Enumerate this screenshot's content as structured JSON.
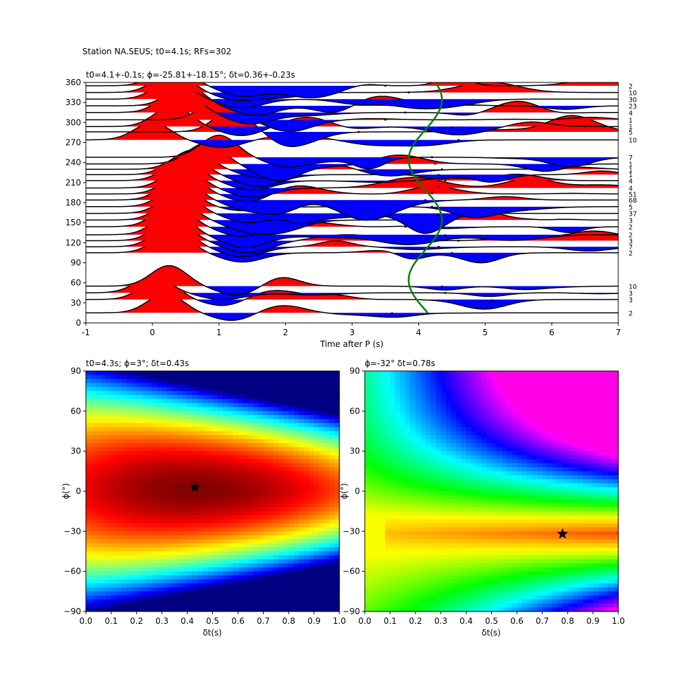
{
  "suptitle": "Station NA.SEUS; t0=4.1s; RFs=302",
  "chart_data": [
    {
      "type": "wiggle",
      "title": "t0=4.1+-0.1s; ϕ=-25.81+-18.15°; δt=0.36+-0.23s",
      "xlabel": "Time after P (s)",
      "ylabel": "",
      "xlim": [
        -1,
        7
      ],
      "ylim": [
        0,
        360
      ],
      "xticks": [
        -1,
        0,
        1,
        2,
        3,
        4,
        5,
        6,
        7
      ],
      "yticks": [
        0,
        30,
        60,
        90,
        120,
        150,
        180,
        210,
        240,
        270,
        300,
        330,
        360
      ],
      "traces": [
        {
          "baz": 15,
          "count": "2",
          "peak_time": 0.2,
          "peak_amp": 28,
          "p_time": 3.6
        },
        {
          "baz": 35,
          "count": "3",
          "peak_time": 0.1,
          "peak_amp": 30,
          "p_time": 5.1
        },
        {
          "baz": 45,
          "count": "3",
          "peak_time": 0.0,
          "peak_amp": 22,
          "p_time": 4.4
        },
        {
          "baz": 55,
          "count": "10",
          "peak_time": 0.25,
          "peak_amp": 30,
          "p_time": 4.35
        },
        {
          "baz": 105,
          "count": "2",
          "peak_time": 0.3,
          "peak_amp": 30,
          "p_time": 4.5
        },
        {
          "baz": 114,
          "count": "7",
          "peak_time": 0.3,
          "peak_amp": 32,
          "p_time": 4.3
        },
        {
          "baz": 123,
          "count": "3",
          "peak_time": 0.3,
          "peak_amp": 30,
          "p_time": 4.6
        },
        {
          "baz": 132,
          "count": "2",
          "peak_time": 0.3,
          "peak_amp": 32,
          "p_time": 4.4
        },
        {
          "baz": 144,
          "count": "2",
          "peak_time": 0.3,
          "peak_amp": 32,
          "p_time": 3.8
        },
        {
          "baz": 154,
          "count": "3",
          "peak_time": 0.35,
          "peak_amp": 30,
          "p_time": 4.25
        },
        {
          "baz": 164,
          "count": "37",
          "peak_time": 0.4,
          "peak_amp": 30,
          "p_time": 4.3
        },
        {
          "baz": 174,
          "count": "5",
          "peak_time": 0.4,
          "peak_amp": 30,
          "p_time": 4.2
        },
        {
          "baz": 184,
          "count": "68",
          "peak_time": 0.4,
          "peak_amp": 32,
          "p_time": 4.1
        },
        {
          "baz": 193,
          "count": "51",
          "peak_time": 0.45,
          "peak_amp": 30,
          "p_time": 4.2
        },
        {
          "baz": 202,
          "count": "4",
          "peak_time": 0.45,
          "peak_amp": 30,
          "p_time": 4.3
        },
        {
          "baz": 213,
          "count": "4",
          "peak_time": 0.45,
          "peak_amp": 30,
          "p_time": 4.4
        },
        {
          "baz": 222,
          "count": "1",
          "peak_time": 0.5,
          "peak_amp": 30,
          "p_time": 4.3
        },
        {
          "baz": 230,
          "count": "1",
          "peak_time": 0.6,
          "peak_amp": 28,
          "p_time": 4.35
        },
        {
          "baz": 238,
          "count": "1",
          "peak_time": 0.8,
          "peak_amp": 30,
          "p_time": 4.25
        },
        {
          "baz": 248,
          "count": "7",
          "peak_time": 1.0,
          "peak_amp": 32,
          "p_time": 4.2
        },
        {
          "baz": 274,
          "count": "10",
          "peak_time": 0.0,
          "peak_amp": 25,
          "p_time": 4.6
        },
        {
          "baz": 286,
          "count": "5",
          "peak_time": 1.2,
          "peak_amp": 32,
          "p_time": 3.1
        },
        {
          "baz": 294,
          "count": "1",
          "peak_time": 0.3,
          "peak_amp": 30,
          "p_time": 4.5
        },
        {
          "baz": 304,
          "count": "1",
          "peak_time": 1.0,
          "peak_amp": 30,
          "p_time": 3.5
        },
        {
          "baz": 315,
          "count": "4",
          "peak_time": 0.4,
          "peak_amp": 35,
          "p_time": 3.8
        },
        {
          "baz": 325,
          "count": "23",
          "peak_time": 0.5,
          "peak_amp": 30,
          "p_time": 3.9
        },
        {
          "baz": 335,
          "count": "30",
          "peak_time": 0.3,
          "peak_amp": 28,
          "p_time": 3.7
        },
        {
          "baz": 345,
          "count": "10",
          "peak_time": 0.3,
          "peak_amp": 30,
          "p_time": 3.85
        },
        {
          "baz": 355,
          "count": "2",
          "peak_time": 0.3,
          "peak_amp": 32,
          "p_time": 3.5
        }
      ],
      "t0_curve": {
        "color": "#008000",
        "mean_time": 4.1,
        "amplitude": 0.25,
        "min_baz": 15,
        "phase_baz": -25.81
      }
    },
    {
      "type": "heatmap",
      "title": "t0=4.3s; ϕ=3°; δt=0.43s",
      "xlabel": "δt(s)",
      "ylabel": "ϕ(°)",
      "xlim": [
        0,
        1
      ],
      "ylim": [
        -90,
        90
      ],
      "xticks": [
        "0.0",
        "0.1",
        "0.2",
        "0.3",
        "0.4",
        "0.5",
        "0.6",
        "0.7",
        "0.8",
        "0.9",
        "1.0"
      ],
      "yticks": [
        -90,
        -60,
        -30,
        0,
        30,
        60,
        90
      ],
      "colormap": "jet",
      "best": {
        "dt": 0.43,
        "phi": 3
      }
    },
    {
      "type": "heatmap",
      "title": "ϕ=-32° δt=0.78s",
      "xlabel": "δt(s)",
      "ylabel": "ϕ(°)",
      "xlim": [
        0,
        1
      ],
      "ylim": [
        -90,
        90
      ],
      "xticks": [
        "0.0",
        "0.1",
        "0.2",
        "0.3",
        "0.4",
        "0.5",
        "0.6",
        "0.7",
        "0.8",
        "0.9",
        "1.0"
      ],
      "yticks": [
        -90,
        -60,
        -30,
        0,
        30,
        60,
        90
      ],
      "colormap": "hsv",
      "best": {
        "dt": 0.78,
        "phi": -32
      }
    }
  ]
}
